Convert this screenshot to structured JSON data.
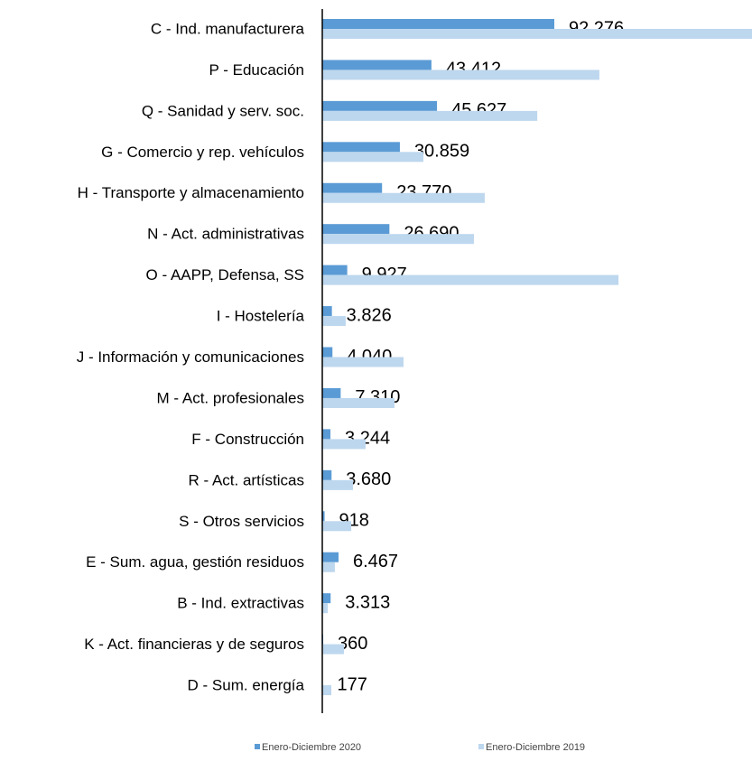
{
  "chart_data": {
    "type": "bar",
    "orientation": "horizontal",
    "categories": [
      "C - Ind. manufacturera",
      "P - Educación",
      "Q - Sanidad y serv. soc.",
      "G - Comercio y rep. vehículos",
      "H - Transporte y almacenamiento",
      "N - Act. administrativas",
      "O - AAPP, Defensa, SS",
      "I - Hostelería",
      "J - Información y comunicaciones",
      "M - Act. profesionales",
      "F - Construcción",
      "R - Act. artísticas",
      "S - Otros servicios",
      "E - Sum. agua, gestión residuos",
      "B - Ind. extractivas",
      "K - Act. financieras y de seguros",
      "D - Sum. energía"
    ],
    "series": [
      {
        "name": "Enero-Diciembre 2020",
        "color": "#5b9bd5",
        "values": [
          92276,
          43412,
          45627,
          30859,
          23770,
          26690,
          9927,
          3826,
          4040,
          7310,
          3244,
          3680,
          918,
          6467,
          3313,
          360,
          177
        ],
        "value_labels": [
          "92.276",
          "43.412",
          "45.627",
          "30.859",
          "23.770",
          "26.690",
          "9.927",
          "3.826",
          "4.040",
          "7.310",
          "3.244",
          "3.680",
          "918",
          "6.467",
          "3.313",
          "360",
          "177"
        ]
      },
      {
        "name": "Enero-Diciembre 2019",
        "color": "#bdd7ee",
        "values": [
          170900,
          110200,
          85500,
          40200,
          64600,
          60300,
          117800,
          9300,
          32300,
          28700,
          17200,
          12200,
          11500,
          5000,
          2200,
          8600,
          3600
        ]
      }
    ]
  }
}
